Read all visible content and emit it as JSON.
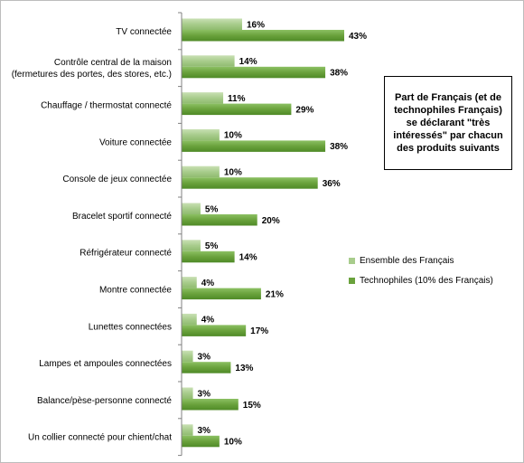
{
  "chart_data": {
    "type": "bar",
    "orientation": "horizontal",
    "categories": [
      "TV connectée",
      [
        "Contrôle central de la maison",
        "(fermetures des portes,  des stores, etc.)"
      ],
      "Chauffage / thermostat connecté",
      "Voiture connectée",
      "Console de jeux connectée",
      "Bracelet sportif connecté",
      "Réfrigérateur connecté",
      "Montre connectée",
      "Lunettes connectées",
      "Lampes et ampoules connectées",
      "Balance/pèse-personne connecté",
      "Un collier connecté pour chient/chat"
    ],
    "series": [
      {
        "name": "Ensemble des Français",
        "values": [
          16,
          14,
          11,
          10,
          10,
          5,
          5,
          4,
          4,
          3,
          3,
          3
        ],
        "color": "#a8cc8c"
      },
      {
        "name": "Technophiles (10% des Français)",
        "values": [
          43,
          38,
          29,
          38,
          36,
          20,
          14,
          21,
          17,
          13,
          15,
          10
        ],
        "color": "#6aa23c"
      }
    ],
    "value_suffix": "%",
    "xlim": [
      0,
      50
    ],
    "grid": false,
    "legend_position": "right",
    "annotation": "Part de Français (et de technophiles Français) se déclarant \"très intéressés\" par chacun des produits suivants"
  }
}
